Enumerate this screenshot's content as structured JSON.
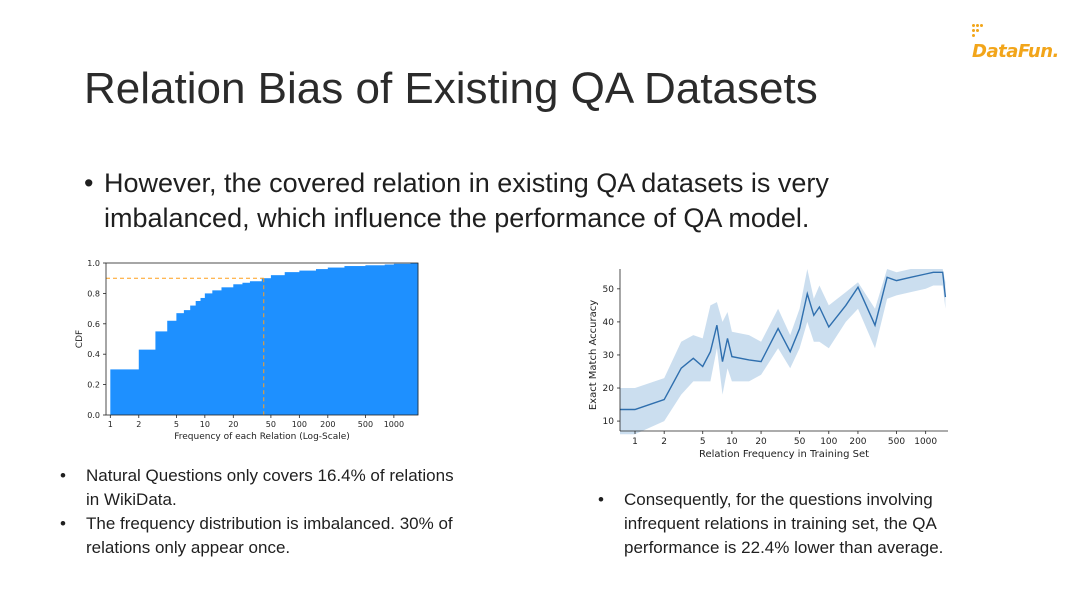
{
  "logo": {
    "text": "DataFun."
  },
  "slide": {
    "title": "Relation Bias of Existing QA Datasets",
    "bullet_main": "However, the covered relation in existing QA datasets is very imbalanced, which influence the performance of QA model.",
    "left_bullets": [
      "Natural Questions only covers 16.4% of relations in WikiData.",
      "The frequency distribution is imbalanced. 30% of relations only appear once."
    ],
    "right_bullets": [
      "Consequently, for the questions involving infrequent relations in training set, the QA performance is 22.4% lower than average."
    ]
  },
  "colors": {
    "bar": "#1e90ff",
    "marker": "#ff9f1c",
    "line": "#2f6fae",
    "band": "#b9d3ea",
    "logo": "#f2a51a"
  },
  "chart_data": [
    {
      "type": "bar",
      "title": "",
      "xlabel": "Frequency of each Relation (Log-Scale)",
      "ylabel": "CDF",
      "xscale": "log",
      "xlim": [
        0.9,
        1800
      ],
      "ylim": [
        0.0,
        1.0
      ],
      "xticks": [
        1,
        2,
        5,
        10,
        20,
        50,
        100,
        200,
        500,
        1000
      ],
      "xtick_labels": [
        "1",
        "2",
        "5",
        "10",
        "20",
        "50",
        "100",
        "200",
        "500",
        "1000"
      ],
      "yticks": [
        0.0,
        0.2,
        0.4,
        0.6,
        0.8,
        1.0
      ],
      "ytick_labels": [
        "0.0",
        "0.2",
        "0.4",
        "0.6",
        "0.8",
        "1.0"
      ],
      "x": [
        1,
        2,
        3,
        4,
        5,
        6,
        7,
        8,
        9,
        10,
        12,
        15,
        20,
        25,
        30,
        40,
        50,
        70,
        100,
        150,
        200,
        300,
        500,
        800,
        1000,
        1500
      ],
      "values": [
        0.3,
        0.43,
        0.55,
        0.62,
        0.67,
        0.69,
        0.72,
        0.75,
        0.77,
        0.8,
        0.82,
        0.84,
        0.86,
        0.87,
        0.88,
        0.9,
        0.92,
        0.94,
        0.95,
        0.96,
        0.97,
        0.98,
        0.985,
        0.99,
        0.995,
        1.0
      ],
      "reference": {
        "x": 42,
        "y": 0.9
      }
    },
    {
      "type": "line",
      "title": "",
      "xlabel": "Relation Frequency in Training Set",
      "ylabel": "Exact Match Accuracy",
      "xscale": "log",
      "xlim": [
        0.7,
        1700
      ],
      "ylim": [
        7,
        56
      ],
      "xticks": [
        1,
        2,
        5,
        10,
        20,
        50,
        100,
        200,
        500,
        1000
      ],
      "xtick_labels": [
        "1",
        "2",
        "5",
        "10",
        "20",
        "50",
        "100",
        "200",
        "500",
        "1000"
      ],
      "yticks": [
        10,
        20,
        30,
        40,
        50
      ],
      "ytick_labels": [
        "10",
        "20",
        "30",
        "40",
        "50"
      ],
      "series": [
        {
          "name": "Exact Match Accuracy",
          "x": [
            0.7,
            1,
            2,
            3,
            4,
            5,
            6,
            7,
            8,
            9,
            10,
            15,
            20,
            30,
            40,
            50,
            60,
            70,
            80,
            100,
            150,
            200,
            300,
            400,
            500,
            700,
            1000,
            1200,
            1500,
            1600
          ],
          "y": [
            13.5,
            13.5,
            16.5,
            26,
            29,
            26.5,
            31,
            39,
            28,
            35,
            29.5,
            28.5,
            28,
            38,
            31,
            38,
            48.5,
            42,
            44.5,
            38.5,
            45,
            50.5,
            39,
            53.5,
            52.5,
            53.5,
            54.5,
            55,
            55,
            47.5
          ],
          "lower": [
            6,
            6,
            10,
            18,
            22,
            22,
            22,
            32,
            18,
            26,
            22,
            22,
            24,
            32,
            26,
            32,
            40,
            34,
            34,
            32,
            40,
            44,
            32,
            47,
            48,
            49,
            50,
            51,
            51,
            44
          ],
          "upper": [
            20,
            20,
            23,
            34,
            36,
            35,
            45,
            46,
            40,
            43,
            37,
            36,
            34,
            44,
            36,
            44,
            56,
            47,
            51,
            45,
            49,
            52,
            44,
            56,
            55,
            56,
            56,
            56,
            56,
            52
          ]
        }
      ]
    }
  ]
}
